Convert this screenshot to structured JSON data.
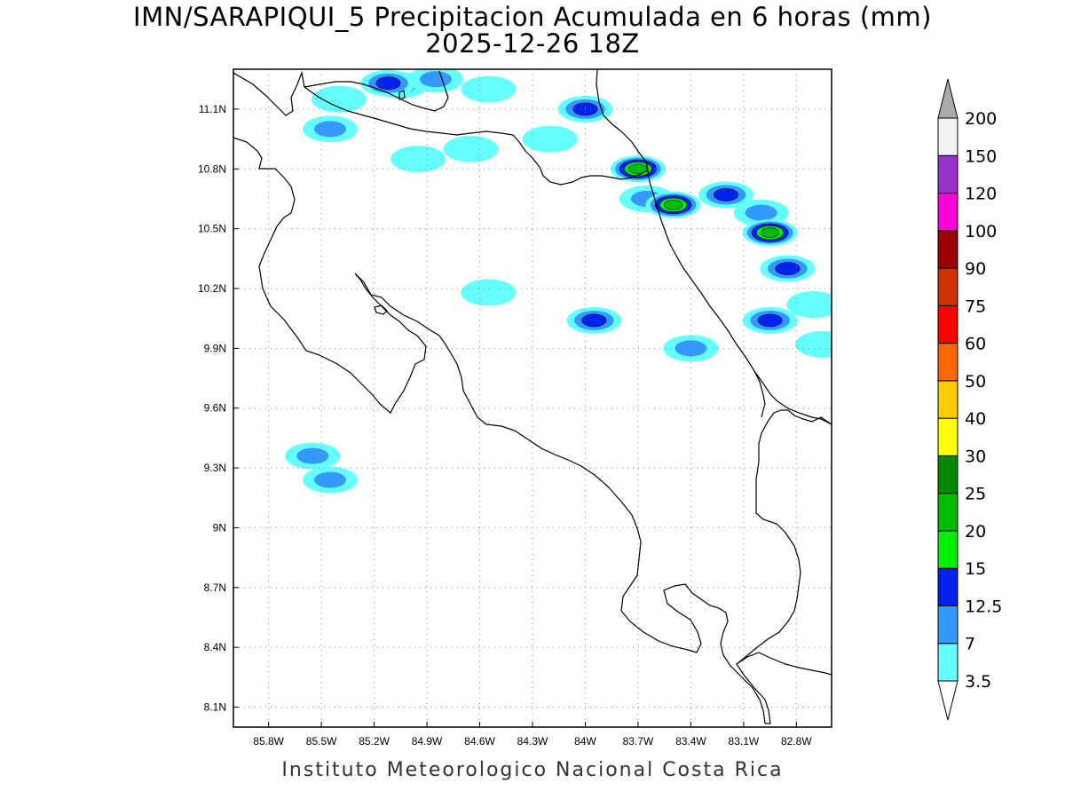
{
  "title_line1": "IMN/SARAPIQUI_5 Precipitacion Acumulada en 6 horas (mm)",
  "title_line2": "2025-12-26 18Z",
  "footer": "Instituto Meteorologico Nacional Costa Rica",
  "map": {
    "lon_range": [
      -86.0,
      -82.6
    ],
    "lat_range": [
      8.0,
      11.3
    ],
    "lon_ticks": [
      "85.8W",
      "85.5W",
      "85.2W",
      "84.9W",
      "84.6W",
      "84.3W",
      "84W",
      "83.7W",
      "83.4W",
      "83.1W",
      "82.8W"
    ],
    "lat_ticks": [
      "8.1N",
      "8.4N",
      "8.7N",
      "9N",
      "9.3N",
      "9.6N",
      "9.9N",
      "10.2N",
      "10.5N",
      "10.8N",
      "11.1N"
    ],
    "grid": "dotted"
  },
  "legend": {
    "labels": [
      "3.5",
      "7",
      "12.5",
      "15",
      "20",
      "25",
      "30",
      "40",
      "50",
      "60",
      "75",
      "90",
      "100",
      "120",
      "150",
      "200"
    ],
    "colors": [
      "#ffffff",
      "#66ffff",
      "#3399ff",
      "#0022ee",
      "#00ee00",
      "#00bb00",
      "#008800",
      "#ffff00",
      "#ffcc00",
      "#ff6600",
      "#ff0000",
      "#cc3300",
      "#990000",
      "#ff00dd",
      "#9933cc",
      "#f2f2f2"
    ],
    "top_arrow_color": "#aaaaaa",
    "bottom_arrow_color": "#ffffff"
  },
  "precip_cells": [
    {
      "lon": -85.05,
      "lat": 11.22,
      "mm": 9
    },
    {
      "lon": -85.12,
      "lat": 11.23,
      "mm": 13
    },
    {
      "lon": -84.85,
      "lat": 11.25,
      "mm": 8
    },
    {
      "lon": -84.55,
      "lat": 11.2,
      "mm": 5
    },
    {
      "lon": -85.4,
      "lat": 11.15,
      "mm": 4
    },
    {
      "lon": -85.45,
      "lat": 11.0,
      "mm": 8
    },
    {
      "lon": -84.95,
      "lat": 10.85,
      "mm": 4
    },
    {
      "lon": -84.65,
      "lat": 10.9,
      "mm": 4
    },
    {
      "lon": -84.2,
      "lat": 10.95,
      "mm": 4
    },
    {
      "lon": -84.0,
      "lat": 11.1,
      "mm": 13
    },
    {
      "lon": -83.7,
      "lat": 10.8,
      "mm": 22
    },
    {
      "lon": -83.65,
      "lat": 10.65,
      "mm": 9
    },
    {
      "lon": -83.5,
      "lat": 10.62,
      "mm": 20
    },
    {
      "lon": -83.2,
      "lat": 10.67,
      "mm": 13
    },
    {
      "lon": -83.0,
      "lat": 10.58,
      "mm": 8
    },
    {
      "lon": -82.95,
      "lat": 10.48,
      "mm": 20
    },
    {
      "lon": -82.85,
      "lat": 10.3,
      "mm": 13
    },
    {
      "lon": -83.95,
      "lat": 10.04,
      "mm": 13
    },
    {
      "lon": -82.95,
      "lat": 10.04,
      "mm": 13
    },
    {
      "lon": -83.4,
      "lat": 9.9,
      "mm": 8
    },
    {
      "lon": -85.55,
      "lat": 9.36,
      "mm": 8
    },
    {
      "lon": -85.45,
      "lat": 9.24,
      "mm": 8
    },
    {
      "lon": -82.65,
      "lat": 9.92,
      "mm": 5
    },
    {
      "lon": -82.7,
      "lat": 10.12,
      "mm": 4
    },
    {
      "lon": -84.55,
      "lat": 10.18,
      "mm": 4
    }
  ]
}
